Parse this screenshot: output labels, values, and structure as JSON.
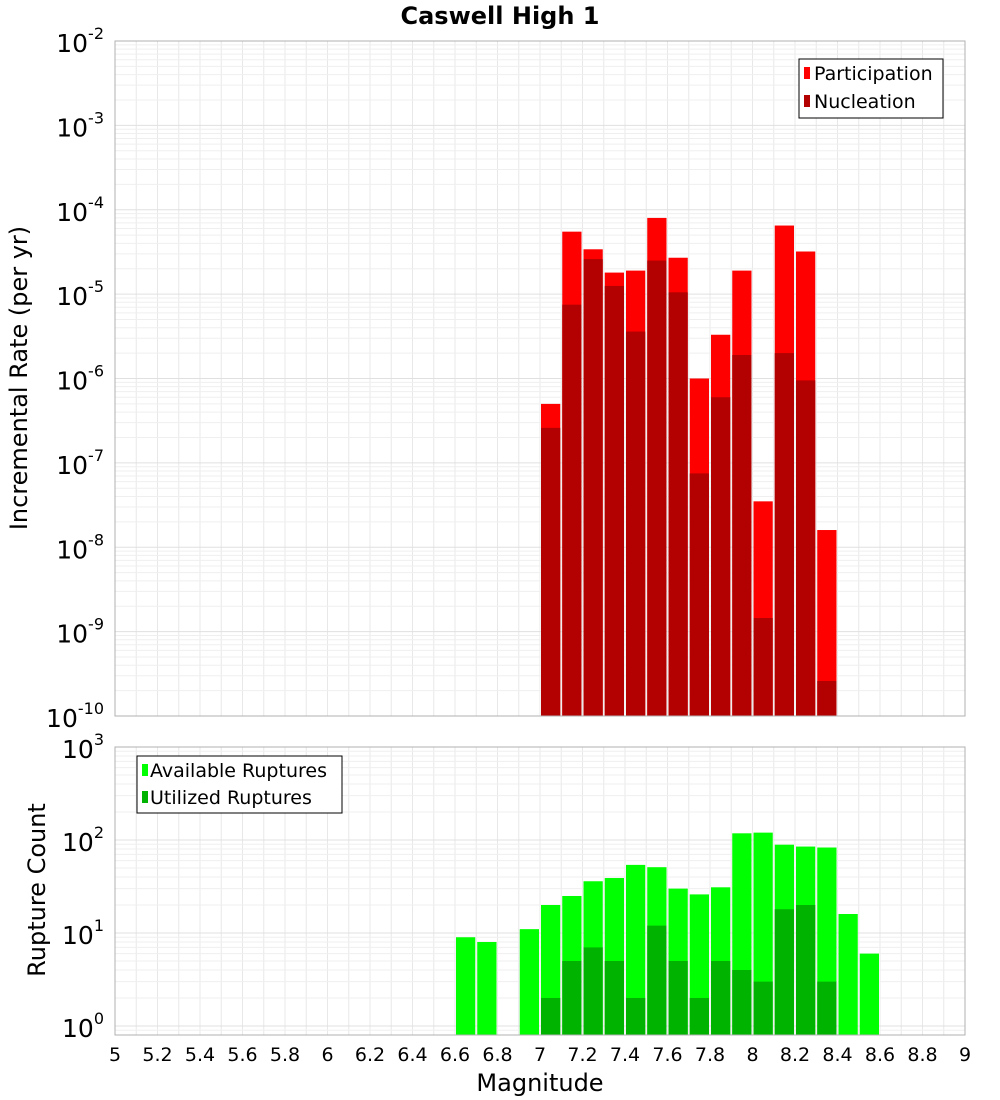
{
  "chart_data": [
    {
      "type": "bar",
      "title": "Caswell High 1",
      "xlabel": "",
      "ylabel": "Incremental Rate (per yr)",
      "yscale": "log",
      "ylim": [
        1e-10,
        0.01
      ],
      "xlim": [
        5,
        9
      ],
      "y_tick_bases": [
        "10",
        "10",
        "10",
        "10",
        "10",
        "10",
        "10",
        "10",
        "10"
      ],
      "y_tick_exponents": [
        "-10",
        "-9",
        "-8",
        "-7",
        "-6",
        "-5",
        "-4",
        "-3",
        "-2"
      ],
      "legend": {
        "placement": "top-right"
      },
      "grid": true,
      "x": [
        7.0,
        7.1,
        7.2,
        7.3,
        7.4,
        7.5,
        7.6,
        7.7,
        7.8,
        7.9,
        8.0,
        8.1,
        8.2,
        8.3
      ],
      "series": [
        {
          "name": "Participation",
          "color": "#ff0000",
          "values": [
            5e-07,
            5.5e-05,
            3.4e-05,
            1.8e-05,
            1.9e-05,
            8e-05,
            2.7e-05,
            1e-06,
            3.3e-06,
            1.9e-05,
            3.5e-08,
            6.5e-05,
            3.2e-05,
            1.6e-08
          ]
        },
        {
          "name": "Nucleation",
          "color": "#b30000",
          "values": [
            2.6e-07,
            7.5e-06,
            2.6e-05,
            1.25e-05,
            3.6e-06,
            2.5e-05,
            1.05e-05,
            7.5e-08,
            6e-07,
            1.9e-06,
            1.45e-09,
            2e-06,
            9.5e-07,
            2.6e-10
          ]
        }
      ]
    },
    {
      "type": "bar",
      "title": "",
      "xlabel": "Magnitude",
      "ylabel": "Rupture Count",
      "yscale": "log",
      "ylim": [
        0.8,
        1000
      ],
      "xlim": [
        5,
        9
      ],
      "x_ticks": [
        "5",
        "5.2",
        "5.4",
        "5.6",
        "5.8",
        "6",
        "6.2",
        "6.4",
        "6.6",
        "6.8",
        "7",
        "7.2",
        "7.4",
        "7.6",
        "7.8",
        "8",
        "8.2",
        "8.4",
        "8.6",
        "8.8",
        "9"
      ],
      "y_tick_bases": [
        "10",
        "10",
        "10",
        "10"
      ],
      "y_tick_exponents": [
        "0",
        "1",
        "2",
        "3"
      ],
      "legend": {
        "placement": "top-left"
      },
      "grid": true,
      "x": [
        6.6,
        6.7,
        6.8,
        6.9,
        7.0,
        7.1,
        7.2,
        7.3,
        7.4,
        7.5,
        7.6,
        7.7,
        7.8,
        7.9,
        8.0,
        8.1,
        8.2,
        8.3,
        8.4,
        8.5
      ],
      "series": [
        {
          "name": "Available Ruptures",
          "color": "#00ff00",
          "values": [
            9,
            8,
            0,
            11,
            20,
            25,
            36,
            39,
            54,
            51,
            30,
            26,
            31,
            118,
            120,
            89,
            85,
            83,
            16,
            6
          ]
        },
        {
          "name": "Utilized Ruptures",
          "color": "#00b300",
          "values": [
            0,
            0,
            0,
            0,
            2,
            5,
            7,
            5,
            2,
            12,
            5,
            2,
            5,
            4,
            3,
            18,
            20,
            3,
            0,
            0
          ]
        }
      ]
    }
  ]
}
